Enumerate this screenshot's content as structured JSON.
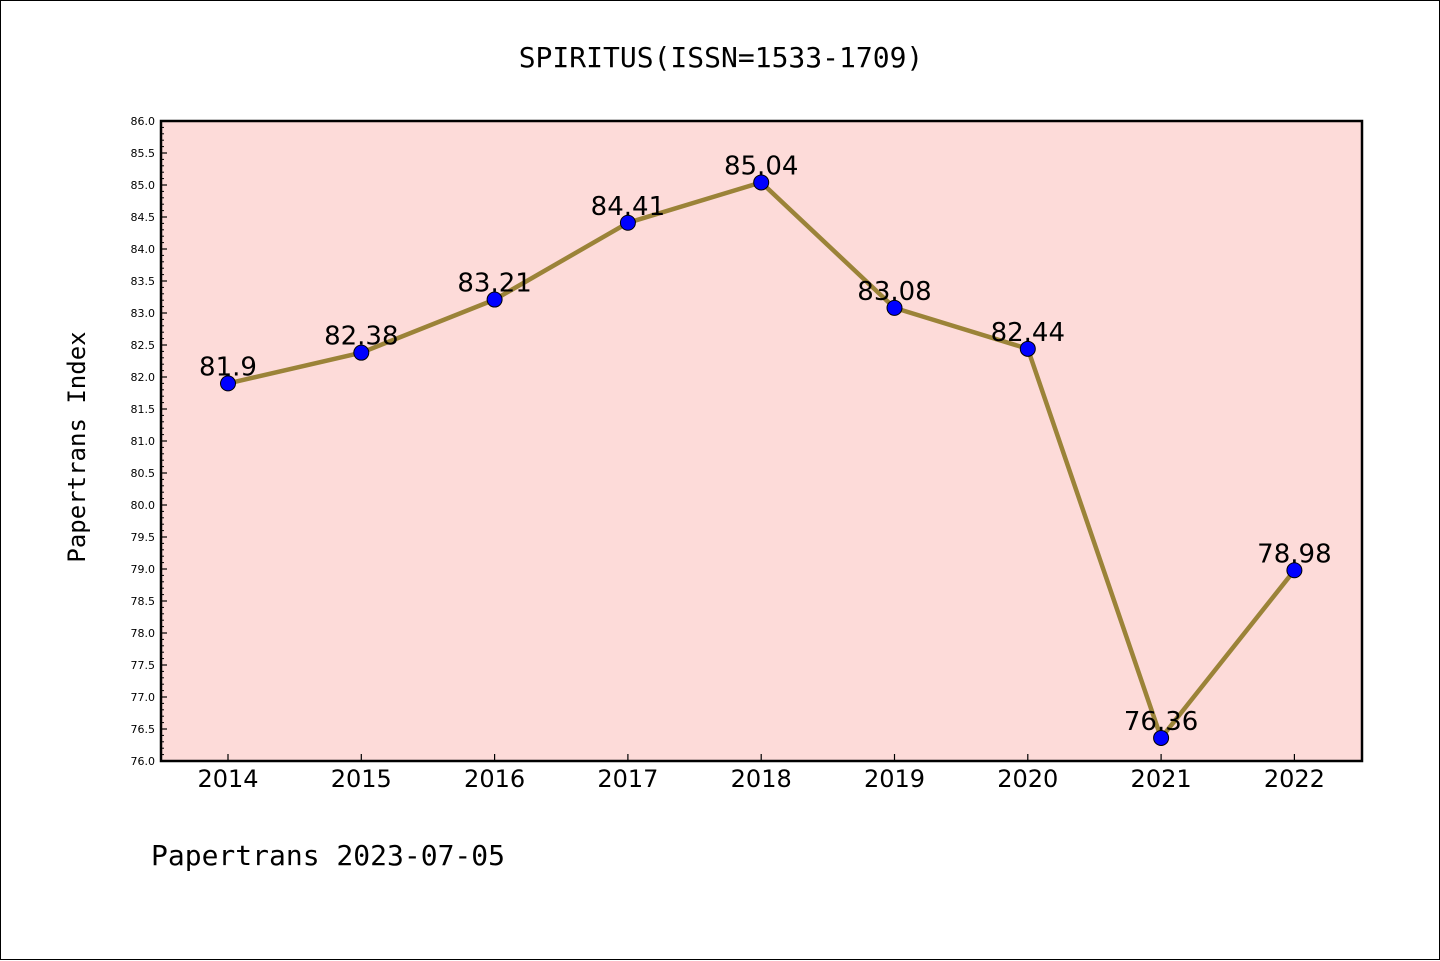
{
  "chart_data": {
    "type": "line",
    "title": "SPIRITUS(ISSN=1533-1709)",
    "xlabel": "",
    "ylabel": "Papertrans Index",
    "categories": [
      "2014",
      "2015",
      "2016",
      "2017",
      "2018",
      "2019",
      "2020",
      "2021",
      "2022"
    ],
    "series": [
      {
        "values": [
          81.9,
          82.38,
          83.21,
          84.41,
          85.04,
          83.08,
          82.44,
          76.36,
          78.98
        ],
        "labels": [
          "81.9",
          "82.38",
          "83.21",
          "84.41",
          "85.04",
          "83.08",
          "82.44",
          "76.36",
          "78.98"
        ]
      }
    ],
    "ylim": [
      76.0,
      86.0
    ],
    "yticks": [
      "76.0",
      "76.5",
      "77.0",
      "77.5",
      "78.0",
      "78.5",
      "79.0",
      "79.5",
      "80.0",
      "80.5",
      "81.0",
      "81.5",
      "82.0",
      "82.5",
      "83.0",
      "83.5",
      "84.0",
      "84.5",
      "85.0",
      "85.5",
      "86.0"
    ],
    "grid": false,
    "legend": "none",
    "colors": {
      "plot_background": "#fddbd9",
      "line": "#9b8338",
      "marker": "#0000ff"
    }
  },
  "footer": {
    "text": "Papertrans 2023-07-05"
  }
}
